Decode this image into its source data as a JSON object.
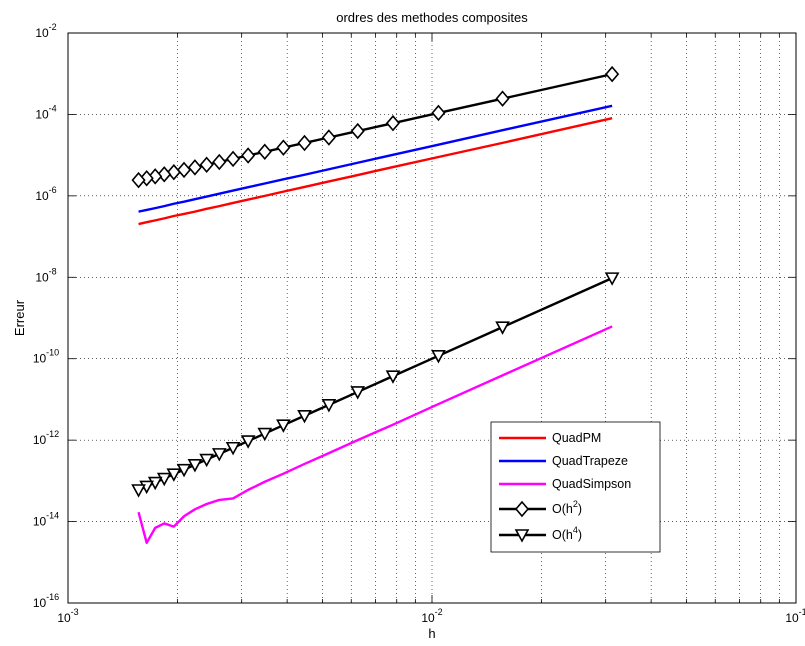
{
  "chart_data": {
    "type": "line",
    "title": "ordres des methodes composites",
    "xlabel": "h",
    "ylabel": "Erreur",
    "xscale": "log",
    "yscale": "log",
    "xlim": [
      0.001,
      0.1
    ],
    "ylim": [
      1e-16,
      0.01
    ],
    "grid": true,
    "legend_position": "bottom-right",
    "x_ticks": [
      {
        "value": 0.001,
        "base": "10",
        "exp": "-3"
      },
      {
        "value": 0.01,
        "base": "10",
        "exp": "-2"
      },
      {
        "value": 0.1,
        "base": "10",
        "exp": "-1"
      }
    ],
    "y_ticks": [
      {
        "value": 1e-16,
        "base": "10",
        "exp": "-16"
      },
      {
        "value": 1e-14,
        "base": "10",
        "exp": "-14"
      },
      {
        "value": 1e-12,
        "base": "10",
        "exp": "-12"
      },
      {
        "value": 1e-10,
        "base": "10",
        "exp": "-10"
      },
      {
        "value": 1e-08,
        "base": "10",
        "exp": "-8"
      },
      {
        "value": 1e-06,
        "base": "10",
        "exp": "-6"
      },
      {
        "value": 0.0001,
        "base": "10",
        "exp": "-4"
      },
      {
        "value": 0.01,
        "base": "10",
        "exp": "-2"
      }
    ],
    "x": [
      0.03125,
      0.015625,
      0.0104167,
      0.0078125,
      0.00625,
      0.0052083,
      0.0044643,
      0.0039063,
      0.0034722,
      0.003125,
      0.0028409,
      0.0026042,
      0.0024038,
      0.0022321,
      0.0020833,
      0.0019531,
      0.0018382,
      0.0017361,
      0.0016447,
      0.0015625
    ],
    "series": [
      {
        "name": "QuadPM",
        "color": "#ff0000",
        "marker": "none",
        "values": [
          8.1e-05,
          2e-05,
          9e-06,
          5.1e-06,
          3.25e-06,
          2.26e-06,
          1.66e-06,
          1.27e-06,
          1e-06,
          8.1e-07,
          6.7e-07,
          5.6e-07,
          4.8e-07,
          4.1e-07,
          3.6e-07,
          3.2e-07,
          2.8e-07,
          2.5e-07,
          2.25e-07,
          2.03e-07
        ]
      },
      {
        "name": "QuadTrapeze",
        "color": "#0000ff",
        "marker": "none",
        "values": [
          0.000163,
          4.1e-05,
          1.81e-05,
          1.02e-05,
          6.5e-06,
          4.5e-06,
          3.3e-06,
          2.55e-06,
          2.01e-06,
          1.63e-06,
          1.35e-06,
          1.13e-06,
          9.6e-07,
          8.3e-07,
          7.2e-07,
          6.4e-07,
          5.6e-07,
          5e-07,
          4.5e-07,
          4.1e-07
        ]
      },
      {
        "name": "QuadSimpson",
        "color": "#ff00ff",
        "marker": "none",
        "values": [
          6.2e-10,
          3.9e-11,
          7.7e-12,
          2.4e-12,
          1e-12,
          4.8e-13,
          2.6e-13,
          1.5e-13,
          9.5e-14,
          6e-14,
          3.7e-14,
          3.4e-14,
          2.7e-14,
          2e-14,
          1.35e-14,
          7.5e-15,
          9e-15,
          7e-15,
          3e-15,
          1.7e-14
        ]
      },
      {
        "name": "O(h2)",
        "color": "#000000",
        "marker": "diamond",
        "values": [
          0.000977,
          0.000244,
          0.000109,
          6.1e-05,
          3.9e-05,
          2.71e-05,
          1.99e-05,
          1.53e-05,
          1.21e-05,
          9.8e-06,
          8.1e-06,
          6.8e-06,
          5.8e-06,
          5e-06,
          4.34e-06,
          3.81e-06,
          3.38e-06,
          3.01e-06,
          2.71e-06,
          2.44e-06
        ]
      },
      {
        "name": "O(h4)",
        "color": "#000000",
        "marker": "triangle-down",
        "values": [
          9.54e-09,
          5.96e-10,
          1.18e-10,
          3.73e-11,
          1.53e-11,
          7.36e-12,
          3.97e-12,
          2.33e-12,
          1.45e-12,
          9.5e-13,
          6.5e-13,
          4.6e-13,
          3.34e-13,
          2.48e-13,
          1.88e-13,
          1.46e-13,
          1.14e-13,
          9.1e-14,
          7.3e-14,
          5.96e-14
        ]
      }
    ],
    "legend": [
      {
        "series": 0,
        "label": "QuadPM",
        "sup": ""
      },
      {
        "series": 1,
        "label": "QuadTrapeze",
        "sup": ""
      },
      {
        "series": 2,
        "label": "QuadSimpson",
        "sup": ""
      },
      {
        "series": 3,
        "label": "O(h",
        "sup": "2",
        "tail": ")"
      },
      {
        "series": 4,
        "label": "O(h",
        "sup": "4",
        "tail": ")"
      }
    ]
  }
}
